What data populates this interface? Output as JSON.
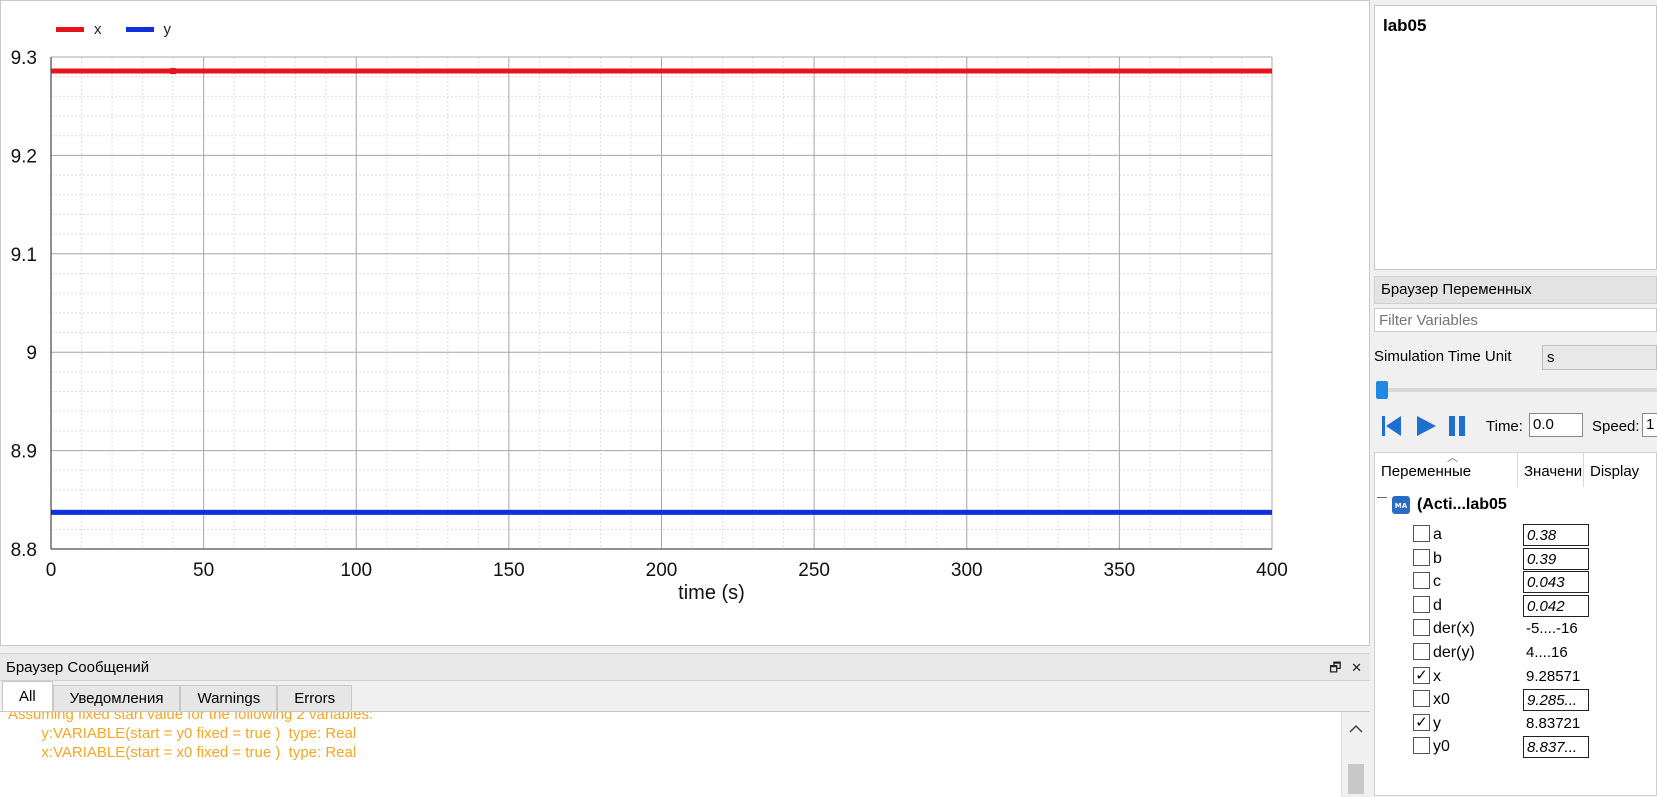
{
  "plot": {
    "legend": [
      {
        "label": "x",
        "color": "#e8121b"
      },
      {
        "label": "y",
        "color": "#1030e0"
      }
    ]
  },
  "chart_data": {
    "type": "line",
    "xlabel": "time (s)",
    "ylabel": "",
    "xlim": [
      0,
      400
    ],
    "ylim": [
      8.8,
      9.3
    ],
    "x_ticks": [
      "0",
      "50",
      "100",
      "150",
      "200",
      "250",
      "300",
      "350",
      "400"
    ],
    "y_ticks": [
      "9.3",
      "9.2",
      "9.1",
      "9",
      "8.9",
      "8.8"
    ],
    "grid": true,
    "legend_position": "top-left",
    "series": [
      {
        "name": "x",
        "color": "#e8121b",
        "x": [
          0,
          400
        ],
        "y": [
          9.28571,
          9.28571
        ]
      },
      {
        "name": "y",
        "color": "#1030e0",
        "x": [
          0,
          400
        ],
        "y": [
          8.83721,
          8.83721
        ]
      }
    ]
  },
  "messages": {
    "title": "Браузер Сообщений",
    "tabs": [
      "All",
      "Уведомления",
      "Warnings",
      "Errors"
    ],
    "lines": [
      "Assuming fixed start value for the following 2 variables:",
      "        y:VARIABLE(start = y0 fixed = true )  type: Real",
      "        x:VARIABLE(start = x0 fixed = true )  type: Real"
    ]
  },
  "model": {
    "title": "lab05"
  },
  "variables_browser": {
    "title": "Браузер Переменных",
    "filter_placeholder": "Filter Variables",
    "sim_time_unit_label": "Simulation Time Unit",
    "sim_time_unit_value": "s",
    "time_label": "Time:",
    "time_value": "0.0",
    "speed_label": "Speed:",
    "speed_value": "1",
    "columns": [
      "Переменные",
      "Значени",
      "Display"
    ],
    "root": "(Acti...lab05",
    "rows": [
      {
        "name": "a",
        "value": "0.38",
        "checked": false,
        "editable": true
      },
      {
        "name": "b",
        "value": "0.39",
        "checked": false,
        "editable": true
      },
      {
        "name": "c",
        "value": "0.043",
        "checked": false,
        "editable": true
      },
      {
        "name": "d",
        "value": "0.042",
        "checked": false,
        "editable": true
      },
      {
        "name": "der(x)",
        "value": "-5....-16",
        "checked": false,
        "editable": false
      },
      {
        "name": "der(y)",
        "value": "4....16",
        "checked": false,
        "editable": false
      },
      {
        "name": "x",
        "value": "9.28571",
        "checked": true,
        "editable": false
      },
      {
        "name": "x0",
        "value": "9.285...",
        "checked": false,
        "editable": true
      },
      {
        "name": "y",
        "value": "8.83721",
        "checked": true,
        "editable": false
      },
      {
        "name": "y0",
        "value": "8.837...",
        "checked": false,
        "editable": true
      }
    ]
  }
}
